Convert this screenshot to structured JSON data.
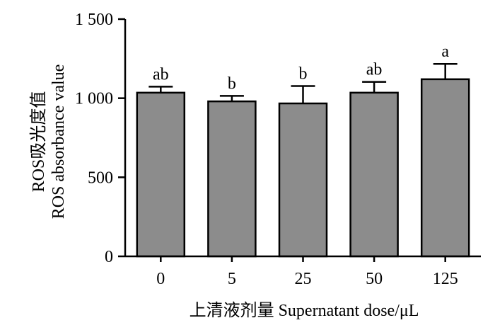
{
  "chart_data": {
    "type": "bar",
    "categories": [
      "0",
      "5",
      "25",
      "50",
      "125"
    ],
    "values": [
      1035,
      980,
      967,
      1035,
      1120
    ],
    "errors": [
      38,
      35,
      110,
      68,
      97
    ],
    "significance": [
      "ab",
      "b",
      "b",
      "ab",
      "a"
    ],
    "ylabel_cn": "ROS吸光度值",
    "ylabel_en": "ROS absorbance value",
    "xlabel": "上清液剂量  Supernatant dose/μL",
    "ylim": [
      0,
      1500
    ],
    "yticks": [
      0,
      500,
      1000,
      1500
    ],
    "ytick_labels": [
      "0",
      "500",
      "1 000",
      "1 500"
    ],
    "bar_color": "#8c8c8c",
    "grid": false
  }
}
